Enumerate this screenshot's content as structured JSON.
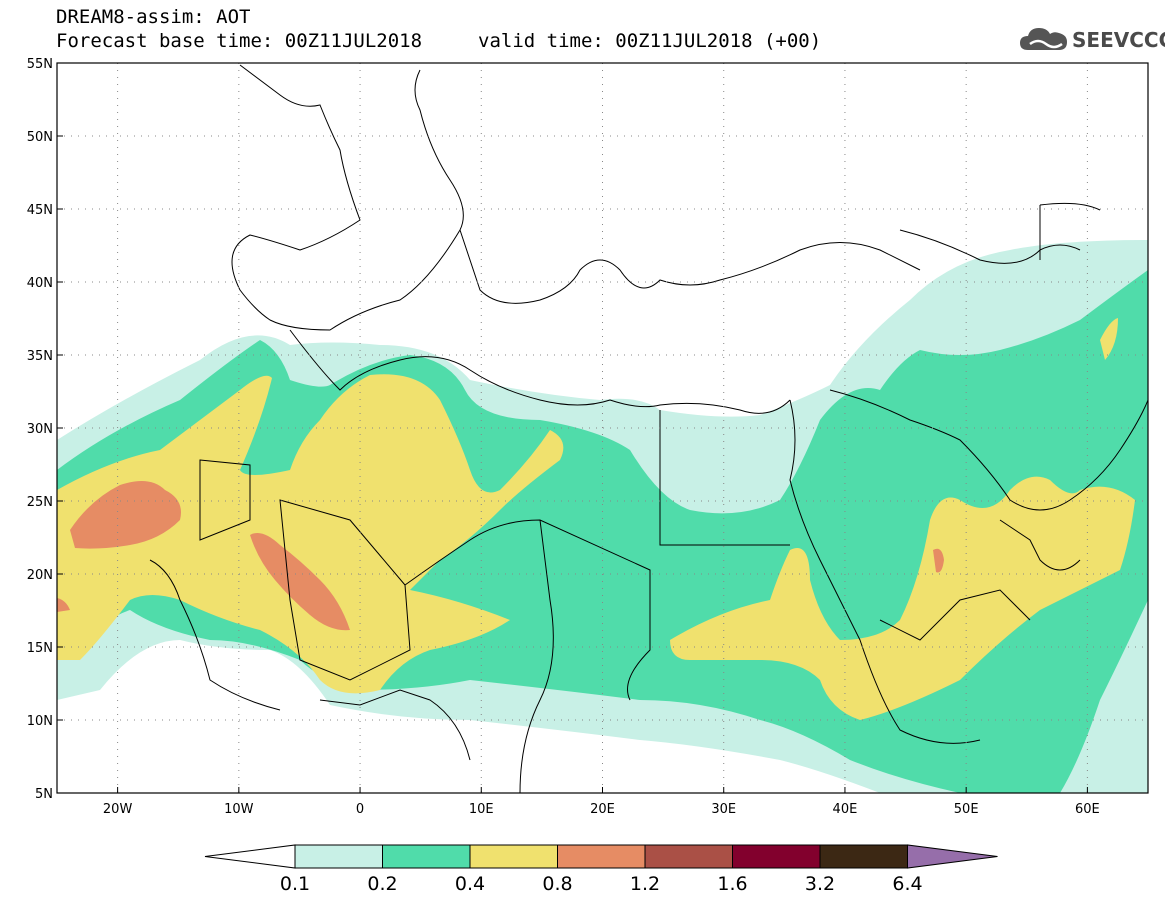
{
  "header": {
    "model_line": "DREAM8-assim: AOT",
    "base_time_line": "Forecast base time: 00Z11JUL2018",
    "valid_time_line": "valid time: 00Z11JUL2018 (+00)"
  },
  "logo": {
    "text": "SEEVCCC",
    "icon": "cloud-icon"
  },
  "map": {
    "lat_labels": [
      "55N",
      "50N",
      "45N",
      "40N",
      "35N",
      "30N",
      "25N",
      "20N",
      "15N",
      "10N",
      "5N"
    ],
    "lat_values": [
      55,
      50,
      45,
      40,
      35,
      30,
      25,
      20,
      15,
      10,
      5
    ],
    "lon_labels": [
      "20W",
      "10W",
      "0",
      "10E",
      "20E",
      "30E",
      "40E",
      "50E",
      "60E"
    ],
    "lon_values": [
      -20,
      -10,
      0,
      10,
      20,
      30,
      40,
      50,
      60
    ],
    "lon_range": [
      -25,
      65
    ],
    "lat_range": [
      5,
      55
    ],
    "grid": "dotted"
  },
  "colorbar": {
    "labels": [
      "0.1",
      "0.2",
      "0.4",
      "0.8",
      "1.2",
      "1.6",
      "3.2",
      "6.4"
    ],
    "colors": [
      "#c8f0e6",
      "#50dcaa",
      "#f0e16e",
      "#e68c64",
      "#aa5046",
      "#82002d",
      "#3c2814",
      "#966eaa"
    ],
    "under_color": "#ffffff"
  },
  "palette": {
    "c01": "#c8f0e6",
    "c02": "#50dcaa",
    "c04": "#f0e16e",
    "c08": "#e68c64",
    "border": "#000000"
  }
}
